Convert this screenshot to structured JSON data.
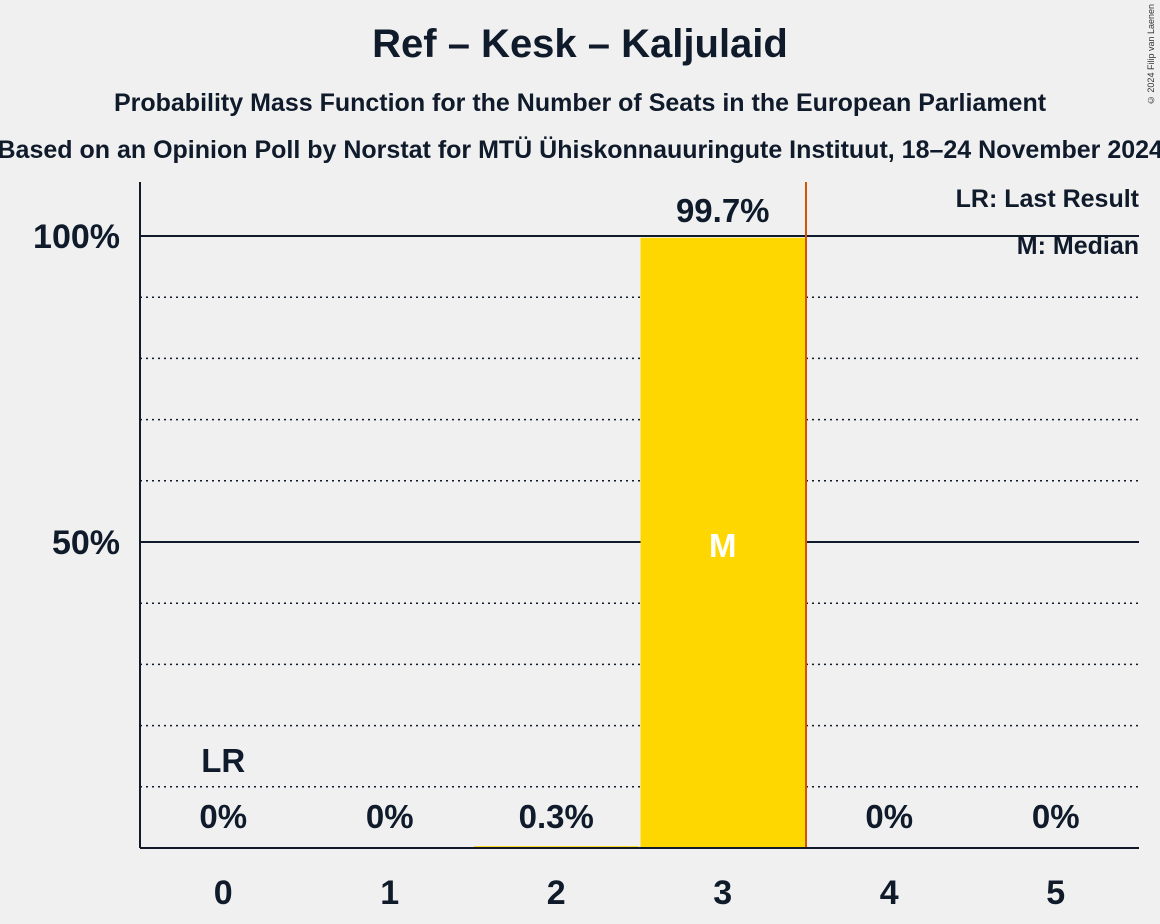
{
  "header": {
    "title": "Ref – Kesk – Kaljulaid",
    "subtitle": "Probability Mass Function for the Number of Seats in the European Parliament",
    "source": "Based on an Opinion Poll by Norstat for MTÜ Ühiskonnauuringute Instituut, 18–24 November 2024",
    "copyright": "© 2024 Filip van Laenen"
  },
  "legend": {
    "last_result": "LR: Last Result",
    "median": "M: Median"
  },
  "colors": {
    "bar": "#FFD700",
    "last_result_line": "#D35400",
    "text": "#0f1a2a",
    "background": "#f0f0f0"
  },
  "chart_data": {
    "type": "bar",
    "categories": [
      "0",
      "1",
      "2",
      "3",
      "4",
      "5"
    ],
    "values": [
      0,
      0,
      0.3,
      99.7,
      0,
      0
    ],
    "value_labels": [
      "0%",
      "0%",
      "0.3%",
      "99.7%",
      "0%",
      "0%"
    ],
    "ylim": [
      0,
      100
    ],
    "y_ticks": [
      {
        "value": 50,
        "label": "50%"
      },
      {
        "value": 100,
        "label": "100%"
      }
    ],
    "minor_gridlines_every": 10,
    "last_result": {
      "category": "0",
      "label": "LR"
    },
    "median": {
      "category": "3",
      "label": "M"
    },
    "last_result_line_between": [
      "3",
      "4"
    ]
  }
}
